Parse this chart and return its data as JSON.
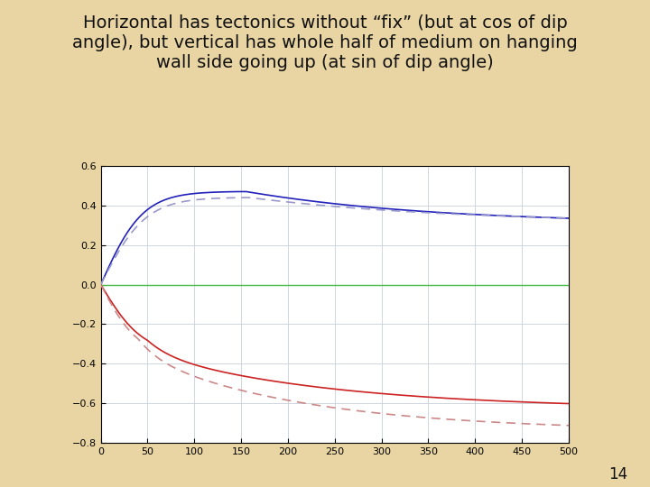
{
  "title": "Horizontal has tectonics without “fix” (but at cos of dip\nangle), but vertical has whole half of medium on hanging\nwall side going up (at sin of dip angle)",
  "title_fontsize": 14,
  "title_color": "#111111",
  "background_color": "#e8d5a3",
  "plot_bg_color": "#ffffff",
  "x_min": 0,
  "x_max": 500,
  "y_min": -0.8,
  "y_max": 0.6,
  "x_ticks": [
    0,
    50,
    100,
    150,
    200,
    250,
    300,
    350,
    400,
    450,
    500
  ],
  "y_ticks": [
    -0.8,
    -0.6,
    -0.4,
    -0.2,
    0,
    0.2,
    0.4,
    0.6
  ],
  "grid_color": "#c8d0d8",
  "blue_solid_color": "#2222bb",
  "blue_dashed_color": "#9999cc",
  "red_solid_color": "#cc2222",
  "red_dashed_color": "#cc8888",
  "green_line_color": "#44bb44",
  "page_number": "14"
}
